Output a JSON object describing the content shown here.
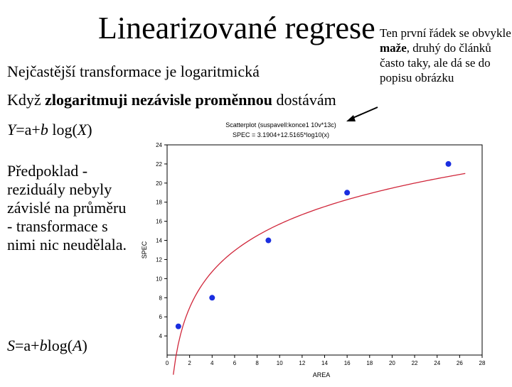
{
  "slide": {
    "title": "Linearizované regrese",
    "subtitle1": "Nejčastější transformace je logaritmická",
    "subtitle2_prefix": "Když ",
    "subtitle2_bold": "zlogaritmuji nezávisle proměnnou",
    "subtitle2_suffix": " dostávám",
    "formula1_y": "Y",
    "formula1_eq": "=a+",
    "formula1_b": "b",
    "formula1_log": " log(",
    "formula1_x": "X",
    "formula1_close": ")",
    "paragraph": "Předpoklad - reziduály nebyly závislé na průměru - transformace s nimi nic neudělala.",
    "formula2_s": "S",
    "formula2_eq": "=a+",
    "formula2_b": "b",
    "formula2_log": "log(",
    "formula2_a": "A",
    "formula2_close": ")"
  },
  "note": {
    "part1": "Ten první řádek se obvykle ",
    "bold": "maže",
    "part2": ", druhý do článků často taky, ale dá se do popisu obrázku"
  },
  "colors": {
    "curve": "#d0263a",
    "points": "#1a2ee0",
    "axis": "#000000"
  },
  "chart_data": {
    "type": "scatter",
    "title": "Scatterplot (suspavell:konce1 10v*13c)",
    "subtitle": "SPEC = 3.1904+12.5165*log10(x)",
    "xlabel": "AREA",
    "ylabel": "SPEC",
    "xlim": [
      0,
      28
    ],
    "ylim": [
      2,
      24
    ],
    "xticks": [
      0,
      2,
      4,
      6,
      8,
      10,
      12,
      14,
      16,
      18,
      20,
      22,
      24,
      26,
      28
    ],
    "yticks": [
      4,
      6,
      8,
      10,
      12,
      14,
      16,
      18,
      20,
      22,
      24
    ],
    "points": [
      {
        "x": 1,
        "y": 5
      },
      {
        "x": 4,
        "y": 8
      },
      {
        "x": 9,
        "y": 14
      },
      {
        "x": 16,
        "y": 19
      },
      {
        "x": 25,
        "y": 22
      }
    ],
    "fit": {
      "intercept": 3.1904,
      "slope": 12.5165,
      "x_from": 0.55,
      "x_to": 26.5
    }
  }
}
